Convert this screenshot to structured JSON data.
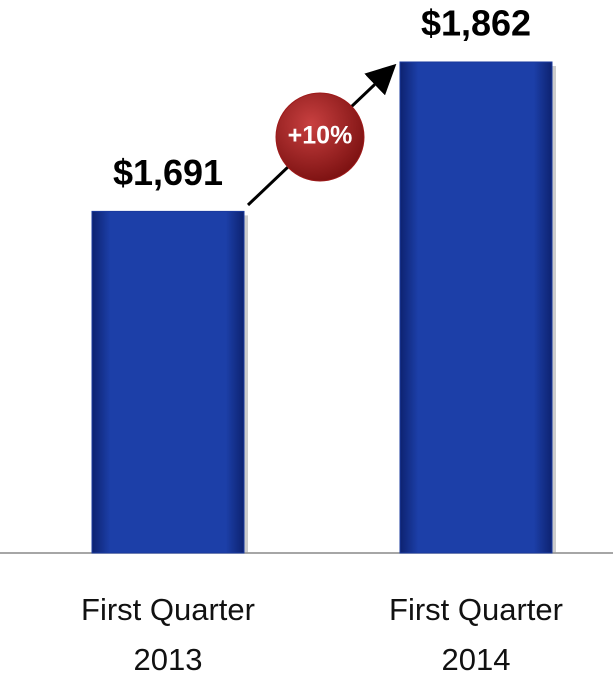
{
  "chart_data": {
    "type": "bar",
    "categories": [
      "First Quarter 2013",
      "First Quarter 2014"
    ],
    "values": [
      1691,
      1862
    ],
    "value_labels": [
      "$1,691",
      "$1,862"
    ],
    "color": "#1a3a9e",
    "ylim": [
      1300,
      1870
    ],
    "annotation": "+10%",
    "annotation_color": "#9e1a1a"
  }
}
